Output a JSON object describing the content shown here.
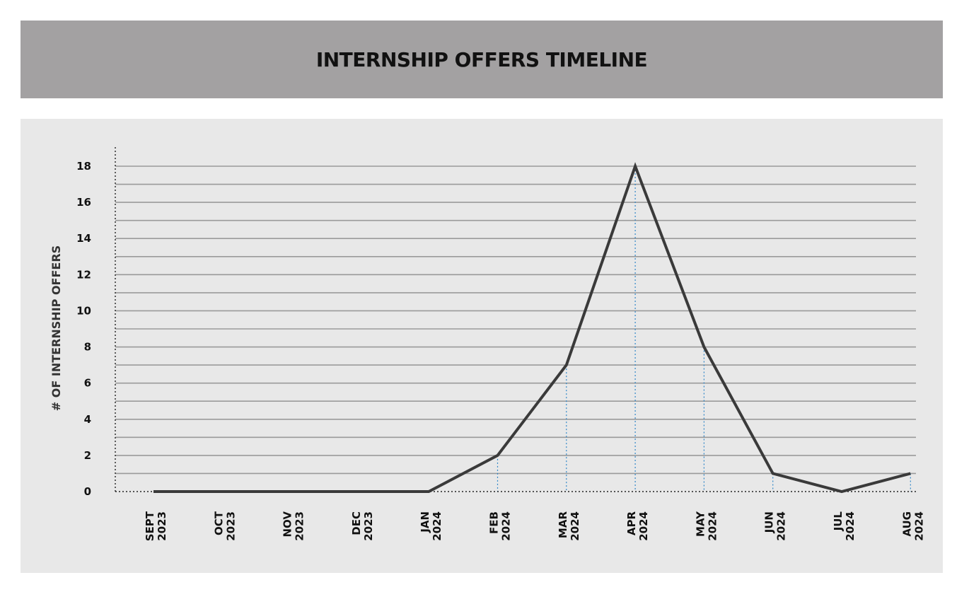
{
  "header": {
    "title": "INTERNSHIP OFFERS TIMELINE"
  },
  "chart_data": {
    "type": "line",
    "title": "INTERNSHIP OFFERS TIMELINE",
    "ylabel": "# OF INTERNSHIP OFFERS",
    "xlabel": "",
    "categories": [
      [
        "SEPT",
        "2023"
      ],
      [
        "OCT",
        "2023"
      ],
      [
        "NOV",
        "2023"
      ],
      [
        "DEC",
        "2023"
      ],
      [
        "JAN",
        "2024"
      ],
      [
        "FEB",
        "2024"
      ],
      [
        "MAR",
        "2024"
      ],
      [
        "APR",
        "2024"
      ],
      [
        "MAY",
        "2024"
      ],
      [
        "JUN",
        "2024"
      ],
      [
        "JUL",
        "2024"
      ],
      [
        "AUG",
        "2024"
      ]
    ],
    "values": [
      0,
      0,
      0,
      0,
      0,
      2,
      7,
      18,
      8,
      1,
      0,
      1
    ],
    "ylim": [
      0,
      18
    ],
    "yticks": [
      0,
      2,
      4,
      6,
      8,
      10,
      12,
      14,
      16,
      18
    ],
    "grid": true,
    "drop_lines": true,
    "colors": {
      "line": "#3a3a3a",
      "grid": "#9a9a9a",
      "drop_line": "#2f86c8",
      "title_bar": "#a3a1a2",
      "panel": "#e8e8e8"
    }
  }
}
